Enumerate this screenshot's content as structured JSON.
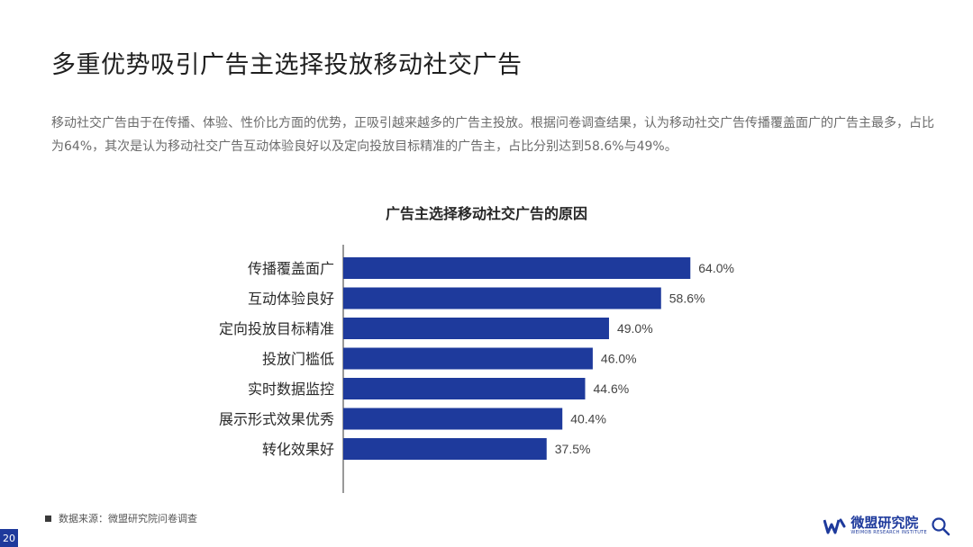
{
  "slide": {
    "title": "多重优势吸引广告主选择投放移动社交广告",
    "intro": "移动社交广告由于在传播、体验、性价比方面的优势，正吸引越来越多的广告主投放。根据问卷调查结果，认为移动社交广告传播覆盖面广的广告主最多，占比为64%，其次是认为移动社交广告互动体验良好以及定向投放目标精准的广告主，占比分别达到58.6%与49%。",
    "source": "数据来源：微盟研究院问卷调查",
    "page_number": "20"
  },
  "logo": {
    "name": "微盟研究院",
    "subtitle": "WEIMOB RESEARCH INSTITUTE",
    "icon": "weimob-logo-icon",
    "search_icon": "magnifier-icon"
  },
  "colors": {
    "bar": "#1e3a9c",
    "axis": "#333333",
    "accent": "#1e3a9c"
  },
  "chart_data": {
    "type": "bar",
    "orientation": "horizontal",
    "title": "广告主选择移动社交广告的原因",
    "categories": [
      "传播覆盖面广",
      "互动体验良好",
      "定向投放目标精准",
      "投放门槛低",
      "实时数据监控",
      "展示形式效果优秀",
      "转化效果好"
    ],
    "values": [
      64.0,
      58.6,
      49.0,
      46.0,
      44.6,
      40.4,
      37.5
    ],
    "value_labels": [
      "64.0%",
      "58.6%",
      "49.0%",
      "46.0%",
      "44.6%",
      "40.4%",
      "37.5%"
    ],
    "unit": "%",
    "xlim": [
      0,
      100
    ],
    "grid": false,
    "legend": "none"
  }
}
